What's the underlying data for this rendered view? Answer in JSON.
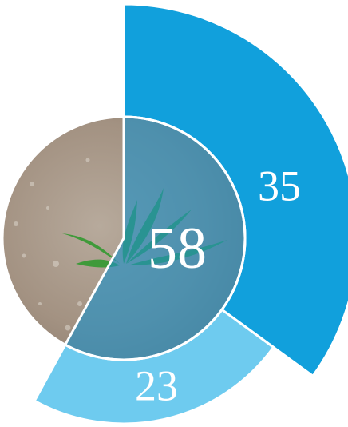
{
  "chart_data": {
    "type": "radial-bar",
    "series": [
      {
        "color": "#11a0dc",
        "values": [
          35
        ]
      },
      {
        "color": "#6ecbef",
        "values": [
          23
        ]
      }
    ],
    "center_value": 58,
    "center_color": "#1b90c8",
    "ylim": [
      0,
      100
    ]
  }
}
